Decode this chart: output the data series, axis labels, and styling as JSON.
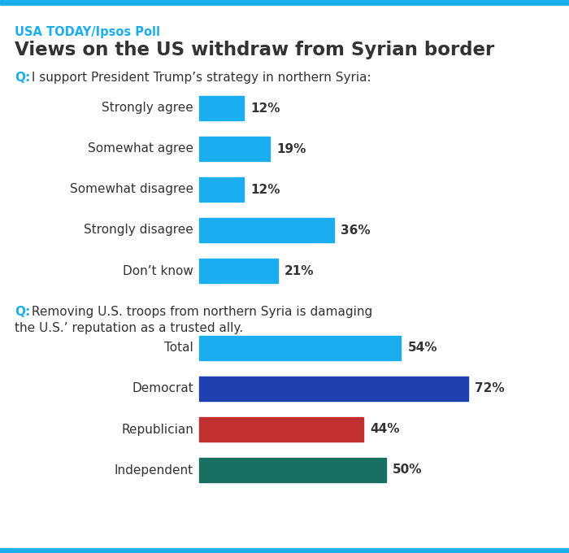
{
  "source_label": "USA TODAY/Ipsos Poll",
  "title": "Views on the US withdraw from Syrian border",
  "q1_intro_q": "Q:",
  "q1_intro_text": " I support President Trump’s strategy in northern Syria:",
  "q1_categories": [
    "Strongly agree",
    "Somewhat agree",
    "Somewhat disagree",
    "Strongly disagree",
    "Don’t know"
  ],
  "q1_values": [
    12,
    19,
    12,
    36,
    21
  ],
  "q1_color": "#1BAEEE",
  "q2_intro_q": "Q:",
  "q2_intro_line1": " Removing U.S. troops from northern Syria is damaging",
  "q2_intro_line2": "the U.S.’ reputation as a trusted ally.",
  "q2_categories": [
    "Total",
    "Democrat",
    "Republician",
    "Independent"
  ],
  "q2_values": [
    54,
    72,
    44,
    50
  ],
  "q2_colors": [
    "#1BAEEE",
    "#2040B0",
    "#C03030",
    "#1A7060"
  ],
  "background_color": "#FFFFFF",
  "source_color": "#1BAEEE",
  "title_color": "#333333",
  "label_color": "#333333",
  "q_color": "#1BAEEE",
  "q_text_color": "#333333",
  "bar_label_color": "#333333",
  "border_color": "#1BAEEE",
  "border_thickness": 6
}
